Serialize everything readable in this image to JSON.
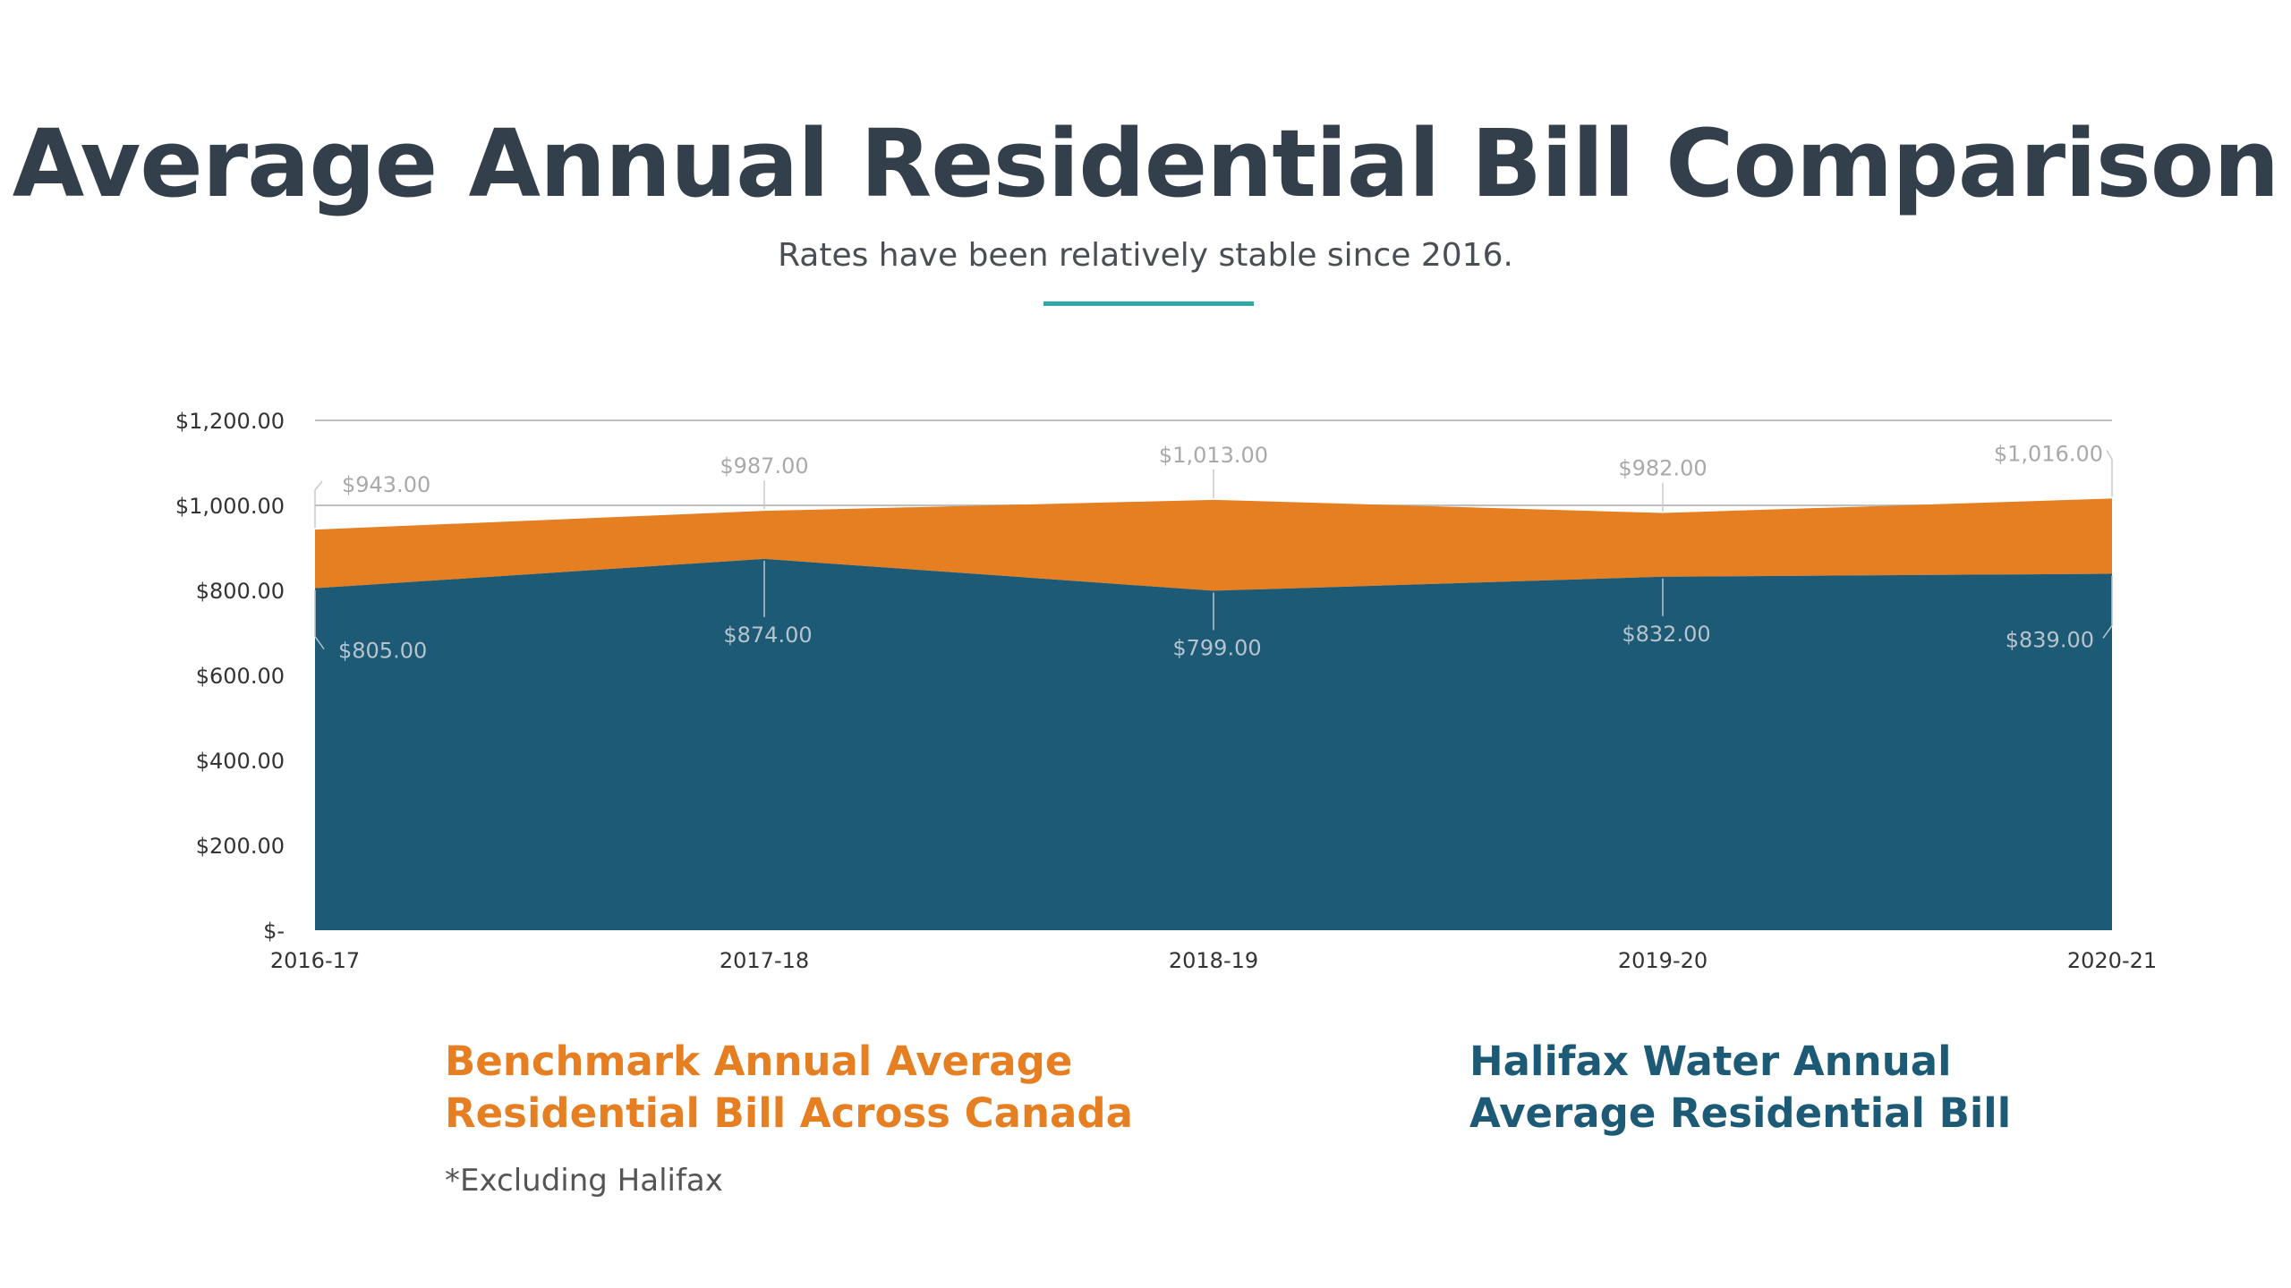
{
  "header": {
    "title": "Average Annual Residential Bill Comparison",
    "subtitle": "Rates have been relatively stable since 2016."
  },
  "legend": {
    "benchmark_line1": "Benchmark Annual Average",
    "benchmark_line2": "Residential Bill Across Canada",
    "halifax_line1": "Halifax Water Annual",
    "halifax_line2": "Average Residential Bill",
    "footnote": "*Excluding Halifax"
  },
  "colors": {
    "benchmark": "#e67e22",
    "halifax": "#1d5a75",
    "title": "#333f4b",
    "accent_divider": "#2ea8a8",
    "gridline": "#bfbfbf",
    "label_gray": "#a9a9a9"
  },
  "chart_data": {
    "type": "area",
    "title": "",
    "xlabel": "",
    "ylabel": "",
    "categories": [
      "2016-17",
      "2017-18",
      "2018-19",
      "2019-20",
      "2020-21"
    ],
    "ylim": [
      0,
      1200
    ],
    "yticks": [
      0,
      200,
      400,
      600,
      800,
      1000,
      1200
    ],
    "ytick_labels": [
      "$-",
      "$200.00",
      "$400.00",
      "$600.00",
      "$800.00",
      "$1,000.00",
      "$1,200.00"
    ],
    "grid": true,
    "series": [
      {
        "name": "Benchmark Annual Average Residential Bill Across Canada",
        "values": [
          943,
          987,
          1013,
          982,
          1016
        ],
        "labels": [
          "$943.00",
          "$987.00",
          "$1,013.00",
          "$982.00",
          "$1,016.00"
        ],
        "color": "#e67e22"
      },
      {
        "name": "Halifax Water Annual Average Residential Bill",
        "values": [
          805,
          874,
          799,
          832,
          839
        ],
        "labels": [
          "$805.00",
          "$874.00",
          "$799.00",
          "$832.00",
          "$839.00"
        ],
        "color": "#1d5a75"
      }
    ]
  }
}
